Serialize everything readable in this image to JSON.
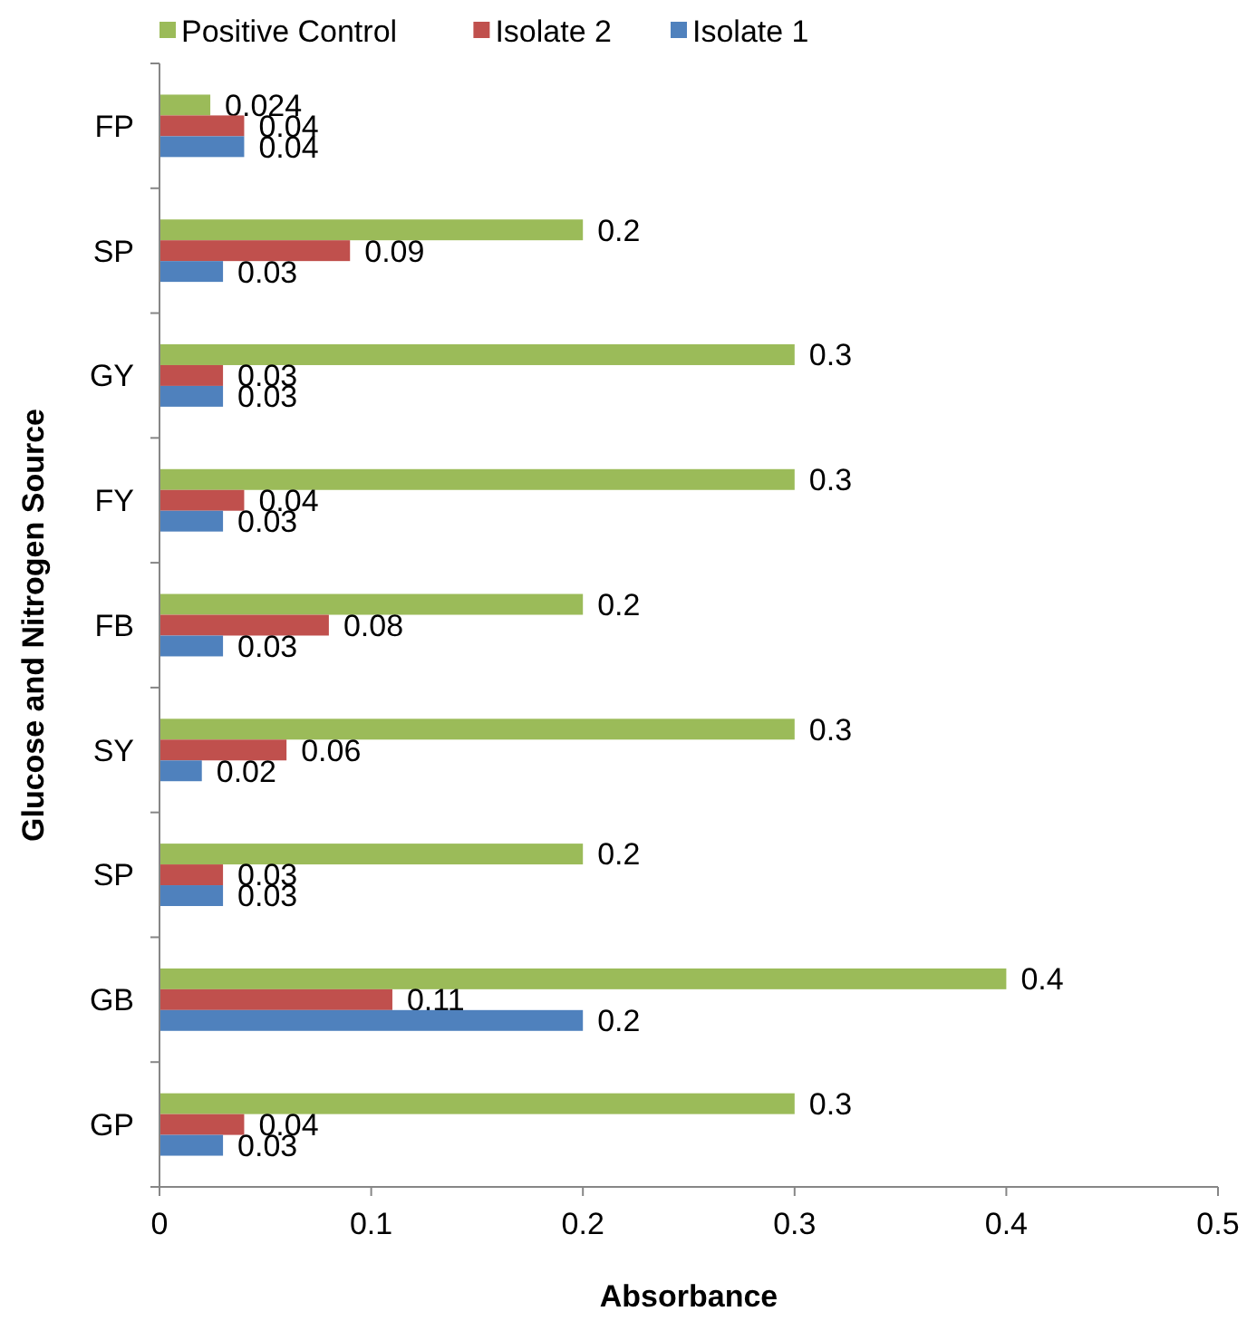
{
  "chart_data": {
    "type": "bar",
    "orientation": "horizontal",
    "xlabel": "Absorbance",
    "ylabel": "Glucose and Nitrogen Source",
    "categories": [
      "FP",
      "SP",
      "GY",
      "FY",
      "FB",
      "SY",
      "SP",
      "GB",
      "GP"
    ],
    "series": [
      {
        "name": "Positive Control",
        "color": "#9bbb59",
        "values": [
          0.024,
          0.2,
          0.3,
          0.3,
          0.2,
          0.3,
          0.2,
          0.4,
          0.3
        ]
      },
      {
        "name": "Isolate 2",
        "color": "#c0504d",
        "values": [
          0.04,
          0.09,
          0.03,
          0.04,
          0.08,
          0.06,
          0.03,
          0.11,
          0.04
        ]
      },
      {
        "name": "Isolate 1",
        "color": "#4f81bd",
        "values": [
          0.04,
          0.03,
          0.03,
          0.03,
          0.03,
          0.02,
          0.03,
          0.2,
          0.03
        ]
      }
    ],
    "xlim": [
      0,
      0.5
    ],
    "xticks": [
      0,
      0.1,
      0.2,
      0.3,
      0.4,
      0.5
    ],
    "data_labels": true,
    "legend": "top",
    "grid": false
  }
}
